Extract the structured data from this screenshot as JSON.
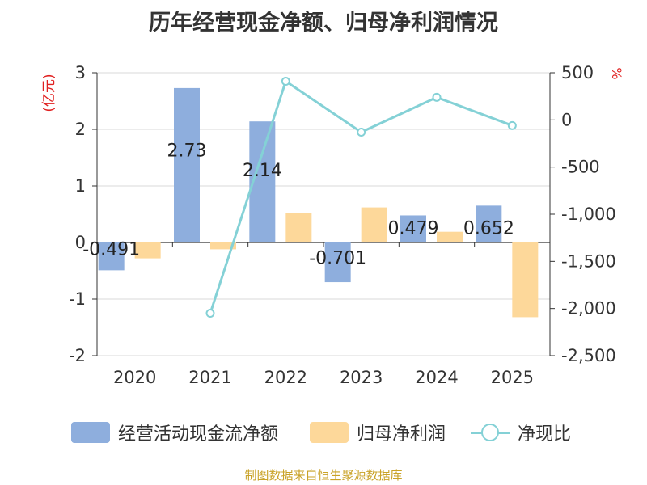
{
  "title": "历年经营现金净额、归母净利润情况",
  "source": "制图数据来自恒生聚源数据库",
  "chart_data": {
    "type": "bar",
    "categories": [
      "2020",
      "2021",
      "2022",
      "2023",
      "2024",
      "2025"
    ],
    "left_axis": {
      "unit": "(亿元)",
      "range": [
        -2,
        3
      ],
      "ticks": [
        "-2",
        "-1",
        "0",
        "1",
        "2",
        "3"
      ]
    },
    "right_axis": {
      "unit": "%",
      "range": [
        -2500,
        500
      ],
      "ticks": [
        "-2,500",
        "-2,000",
        "-1,500",
        "-1,000",
        "-500",
        "0",
        "500"
      ]
    },
    "series": [
      {
        "name": "经营活动现金流净额",
        "type": "bar",
        "axis": "left",
        "color": "#8eaedd",
        "values": [
          -0.491,
          2.73,
          2.14,
          -0.701,
          0.479,
          0.652
        ],
        "labels": [
          "-0.491",
          "2.73",
          "2.14",
          "-0.701",
          "0.479",
          "0.652"
        ]
      },
      {
        "name": "归母净利润",
        "type": "bar",
        "axis": "left",
        "color": "#fdd89a",
        "values": [
          -0.28,
          -0.12,
          0.52,
          0.62,
          0.19,
          -1.32
        ]
      },
      {
        "name": "净现比",
        "type": "line",
        "axis": "right",
        "color": "#84d1d6",
        "values": [
          null,
          -2050,
          410,
          -130,
          240,
          -60
        ]
      }
    ],
    "grid": true,
    "legend_position": "bottom"
  }
}
